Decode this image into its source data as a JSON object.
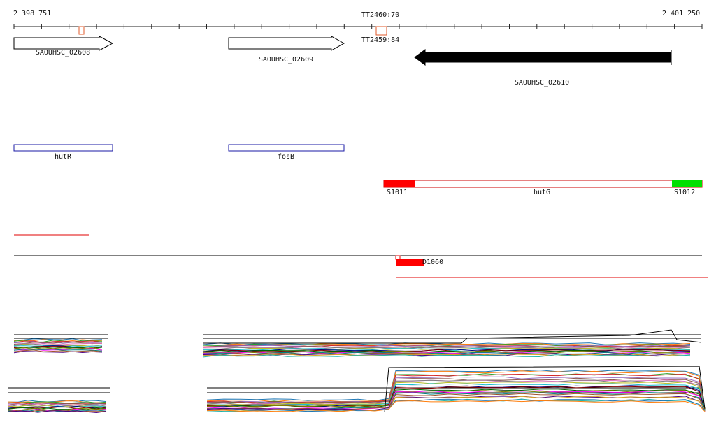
{
  "ruler": {
    "start_label": "2 398 751",
    "end_label": "2 401 250",
    "start": 2398751,
    "end": 2401250
  },
  "terminators": [
    {
      "label": "TT2460:70"
    },
    {
      "label": "TT2459:84"
    }
  ],
  "genes": [
    {
      "locus": "SAOUHSC_02608",
      "strand": "+",
      "style": "outline"
    },
    {
      "locus": "SAOUHSC_02609",
      "strand": "+",
      "style": "outline"
    },
    {
      "locus": "SAOUHSC_02610",
      "strand": "-",
      "style": "filled"
    }
  ],
  "gene_names": [
    {
      "name": "hutR",
      "color": "#1a1aa6"
    },
    {
      "name": "fosB",
      "color": "#1a1aa6"
    }
  ],
  "operon": {
    "name": "hutG",
    "left_segment": {
      "label": "S1011",
      "color": "#ff0000"
    },
    "right_segment": {
      "label": "S1012",
      "color": "#00e000"
    },
    "outline_color": "#cc0000"
  },
  "features": {
    "d_label": "D1060",
    "d_color": "#ff0000"
  },
  "colors": {
    "ruler": "#222222",
    "axis": "#000000",
    "red_line": "#e00000"
  }
}
